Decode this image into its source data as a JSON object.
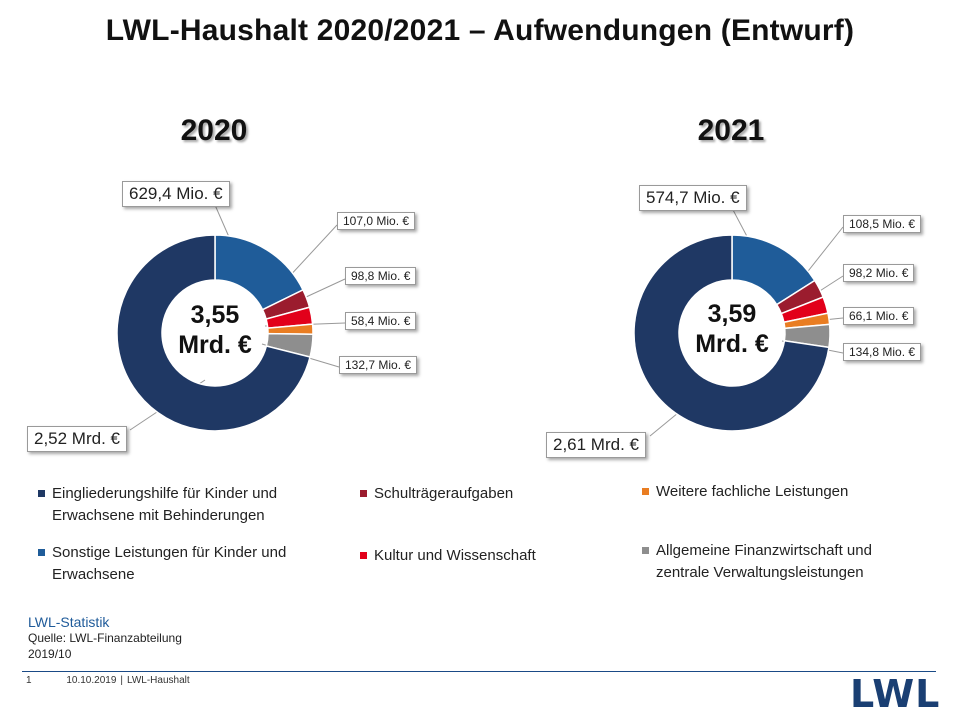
{
  "title": "LWL-Haushalt 2020/2021 – Aufwendungen (Entwurf)",
  "colors": {
    "eingliederung": "#1f3864",
    "sonstige": "#1f5c99",
    "schultraeger": "#9b1c2e",
    "kultur": "#e2001a",
    "weitere": "#e97d22",
    "allgemein": "#8e8e8e"
  },
  "chart_data": [
    {
      "type": "pie",
      "title": "2020",
      "total_label_line1": "3,55",
      "total_label_line2": "Mrd. €",
      "slices": [
        {
          "key": "sonstige",
          "value": 629.4,
          "label": "629,4 Mio. €"
        },
        {
          "key": "schultraeger",
          "value": 107.0,
          "label": "107,0 Mio. €"
        },
        {
          "key": "kultur",
          "value": 98.8,
          "label": "98,8 Mio. €"
        },
        {
          "key": "weitere",
          "value": 58.4,
          "label": "58,4 Mio. €"
        },
        {
          "key": "allgemein",
          "value": 132.7,
          "label": "132,7 Mio. €"
        },
        {
          "key": "eingliederung",
          "value": 2520,
          "label": "2,52 Mrd. €"
        }
      ]
    },
    {
      "type": "pie",
      "title": "2021",
      "total_label_line1": "3,59",
      "total_label_line2": "Mrd. €",
      "slices": [
        {
          "key": "sonstige",
          "value": 574.7,
          "label": "574,7 Mio. €"
        },
        {
          "key": "schultraeger",
          "value": 108.5,
          "label": "108,5 Mio. €"
        },
        {
          "key": "kultur",
          "value": 98.2,
          "label": "98,2 Mio. €"
        },
        {
          "key": "weitere",
          "value": 66.1,
          "label": "66,1 Mio. €"
        },
        {
          "key": "allgemein",
          "value": 134.8,
          "label": "134,8 Mio. €"
        },
        {
          "key": "eingliederung",
          "value": 2610,
          "label": "2,61 Mrd. €"
        }
      ]
    }
  ],
  "legend": [
    {
      "key": "eingliederung",
      "label": "Eingliederungshilfe für Kinder und Erwachsene mit Behinderungen"
    },
    {
      "key": "schultraeger",
      "label": "Schulträgeraufgaben"
    },
    {
      "key": "weitere",
      "label": "Weitere fachliche Leistungen"
    },
    {
      "key": "sonstige",
      "label": "Sonstige Leistungen für Kinder und Erwachsene"
    },
    {
      "key": "kultur",
      "label": "Kultur und Wissenschaft"
    },
    {
      "key": "allgemein",
      "label": "Allgemeine Finanzwirtschaft und zentrale Verwaltungsleistungen"
    }
  ],
  "footer": {
    "source_title": "LWL-Statistik",
    "source_line": "Quelle: LWL-Finanzabteilung",
    "source_date": "2019/10",
    "page_number": "1",
    "date": "10.10.2019",
    "doc_label": "LWL-Haushalt",
    "logo": "LWL"
  }
}
